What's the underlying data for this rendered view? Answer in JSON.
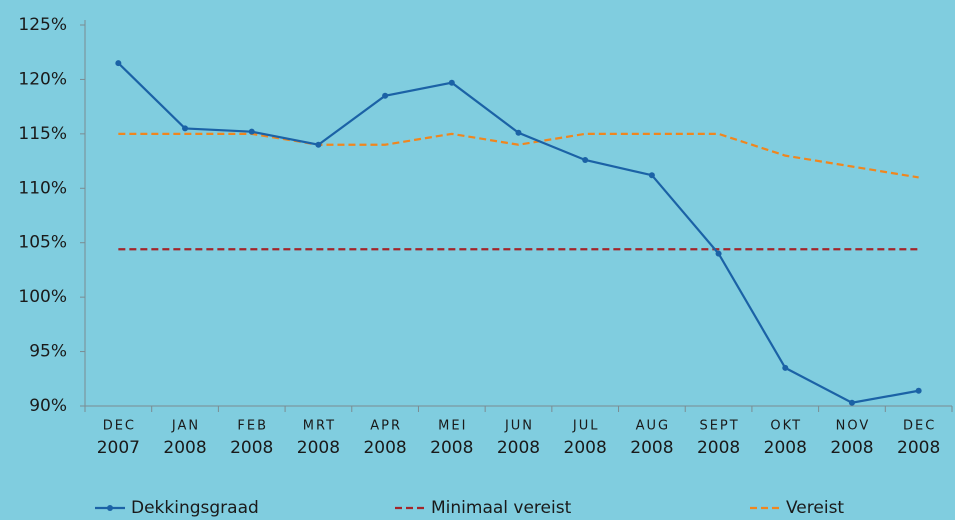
{
  "chart_data": {
    "type": "line",
    "categories": [
      [
        "DEC",
        "2007"
      ],
      [
        "JAN",
        "2008"
      ],
      [
        "FEB",
        "2008"
      ],
      [
        "MRT",
        "2008"
      ],
      [
        "APR",
        "2008"
      ],
      [
        "MEI",
        "2008"
      ],
      [
        "JUN",
        "2008"
      ],
      [
        "JUL",
        "2008"
      ],
      [
        "AUG",
        "2008"
      ],
      [
        "SEPT",
        "2008"
      ],
      [
        "OKT",
        "2008"
      ],
      [
        "NOV",
        "2008"
      ],
      [
        "DEC",
        "2008"
      ]
    ],
    "series": [
      {
        "name": "Dekkingsgraad",
        "color": "#1b62a6",
        "dash": false,
        "markers": true,
        "values": [
          121.5,
          115.5,
          115.2,
          114.0,
          118.5,
          119.7,
          115.1,
          112.6,
          111.2,
          104.0,
          93.5,
          90.3,
          91.4
        ]
      },
      {
        "name": "Minimaal vereist",
        "color": "#a3262b",
        "dash": true,
        "markers": false,
        "values": [
          104.4,
          104.4,
          104.4,
          104.4,
          104.4,
          104.4,
          104.4,
          104.4,
          104.4,
          104.4,
          104.4,
          104.4,
          104.4
        ]
      },
      {
        "name": "Vereist",
        "color": "#f0861e",
        "dash": true,
        "markers": false,
        "values": [
          115,
          115,
          115,
          114,
          114,
          115,
          114,
          115,
          115,
          115,
          113,
          112,
          111
        ]
      }
    ],
    "ylim": [
      90,
      125
    ],
    "yticks": [
      {
        "value": 90,
        "label": "90%"
      },
      {
        "value": 95,
        "label": "95%"
      },
      {
        "value": 100,
        "label": "100%"
      },
      {
        "value": 105,
        "label": "105%"
      },
      {
        "value": 110,
        "label": "110%"
      },
      {
        "value": 115,
        "label": "115%"
      },
      {
        "value": 120,
        "label": "120%"
      },
      {
        "value": 125,
        "label": "125%"
      }
    ],
    "grid": false
  }
}
